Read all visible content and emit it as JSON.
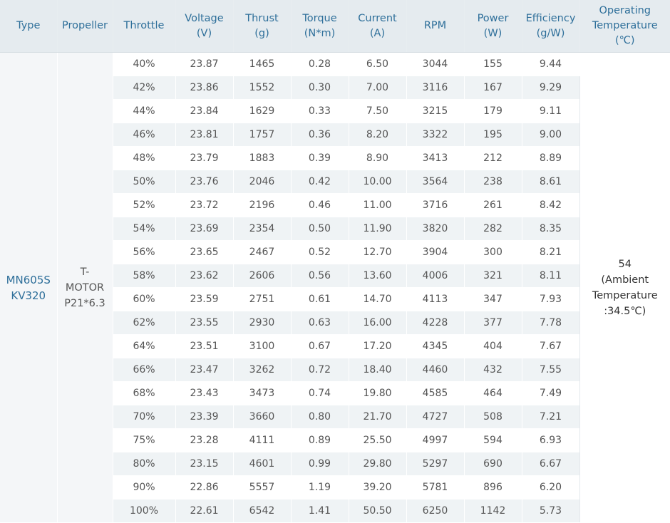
{
  "table": {
    "headers": [
      [
        "Type"
      ],
      [
        "Propeller"
      ],
      [
        "Throttle"
      ],
      [
        "Voltage",
        "(V)"
      ],
      [
        "Thrust",
        "(g)"
      ],
      [
        "Torque",
        "(N*m)"
      ],
      [
        "Current",
        "(A)"
      ],
      [
        "RPM"
      ],
      [
        "Power",
        "(W)"
      ],
      [
        "Efficiency",
        "(g/W)"
      ],
      [
        "Operating",
        "Temperature",
        "(℃)"
      ]
    ],
    "type": [
      "MN605S",
      "KV320"
    ],
    "propeller": [
      "T-",
      "MOTOR",
      "P21*6.3"
    ],
    "temperature": [
      "54",
      "(Ambient",
      "Temperature",
      ":34.5℃)"
    ],
    "rows": [
      [
        "40%",
        "23.87",
        "1465",
        "0.28",
        "6.50",
        "3044",
        "155",
        "9.44"
      ],
      [
        "42%",
        "23.86",
        "1552",
        "0.30",
        "7.00",
        "3116",
        "167",
        "9.29"
      ],
      [
        "44%",
        "23.84",
        "1629",
        "0.33",
        "7.50",
        "3215",
        "179",
        "9.11"
      ],
      [
        "46%",
        "23.81",
        "1757",
        "0.36",
        "8.20",
        "3322",
        "195",
        "9.00"
      ],
      [
        "48%",
        "23.79",
        "1883",
        "0.39",
        "8.90",
        "3413",
        "212",
        "8.89"
      ],
      [
        "50%",
        "23.76",
        "2046",
        "0.42",
        "10.00",
        "3564",
        "238",
        "8.61"
      ],
      [
        "52%",
        "23.72",
        "2196",
        "0.46",
        "11.00",
        "3716",
        "261",
        "8.42"
      ],
      [
        "54%",
        "23.69",
        "2354",
        "0.50",
        "11.90",
        "3820",
        "282",
        "8.35"
      ],
      [
        "56%",
        "23.65",
        "2467",
        "0.52",
        "12.70",
        "3904",
        "300",
        "8.21"
      ],
      [
        "58%",
        "23.62",
        "2606",
        "0.56",
        "13.60",
        "4006",
        "321",
        "8.11"
      ],
      [
        "60%",
        "23.59",
        "2751",
        "0.61",
        "14.70",
        "4113",
        "347",
        "7.93"
      ],
      [
        "62%",
        "23.55",
        "2930",
        "0.63",
        "16.00",
        "4228",
        "377",
        "7.78"
      ],
      [
        "64%",
        "23.51",
        "3100",
        "0.67",
        "17.20",
        "4345",
        "404",
        "7.67"
      ],
      [
        "66%",
        "23.47",
        "3262",
        "0.72",
        "18.40",
        "4460",
        "432",
        "7.55"
      ],
      [
        "68%",
        "23.43",
        "3473",
        "0.74",
        "19.80",
        "4585",
        "464",
        "7.49"
      ],
      [
        "70%",
        "23.39",
        "3660",
        "0.80",
        "21.70",
        "4727",
        "508",
        "7.21"
      ],
      [
        "75%",
        "23.28",
        "4111",
        "0.89",
        "25.50",
        "4997",
        "594",
        "6.93"
      ],
      [
        "80%",
        "23.15",
        "4601",
        "0.99",
        "29.80",
        "5297",
        "690",
        "6.67"
      ],
      [
        "90%",
        "22.86",
        "5557",
        "1.19",
        "39.20",
        "5781",
        "896",
        "6.20"
      ],
      [
        "100%",
        "22.61",
        "6542",
        "1.41",
        "50.50",
        "6250",
        "1142",
        "5.73"
      ]
    ]
  }
}
